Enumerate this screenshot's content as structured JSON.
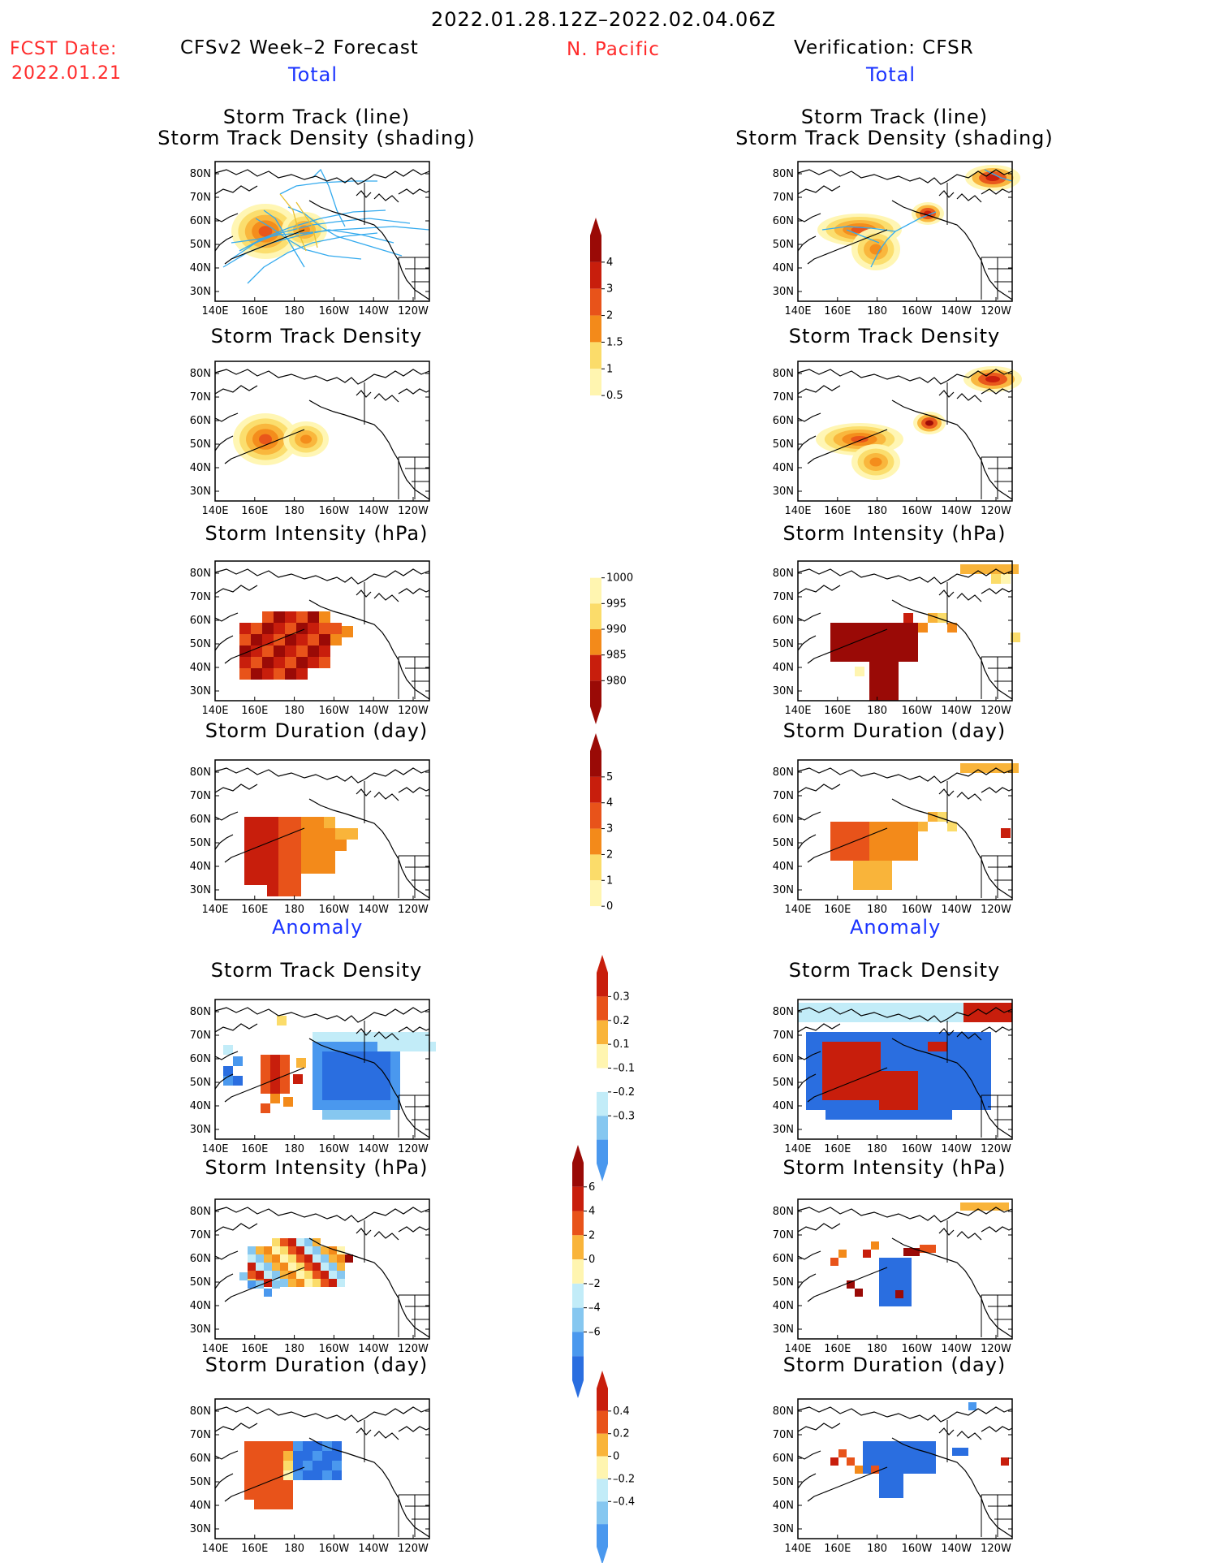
{
  "header": {
    "date_range": "2022.01.28.12Z–2022.02.04.06Z",
    "region": "N. Pacific",
    "fcst_label": "FCST Date:",
    "fcst_date": "2022.01.21",
    "left_title": "CFSv2 Week–2 Forecast",
    "right_title": "Verification: CFSR",
    "total_label": "Total",
    "anomaly_label": "Anomaly"
  },
  "panel_titles": {
    "track_line": "Storm Track (line)",
    "track_density_shading": "Storm Track Density (shading)",
    "track_density": "Storm Track Density",
    "intensity": "Storm Intensity (hPa)",
    "duration": "Storm Duration (day)"
  },
  "axes": {
    "lat_ticks": [
      "80N",
      "70N",
      "60N",
      "50N",
      "40N",
      "30N"
    ],
    "lon_ticks": [
      "140E",
      "160E",
      "180",
      "160W",
      "140W",
      "120W"
    ]
  },
  "colorbars": {
    "density_total": [
      "4",
      "3",
      "2",
      "1.5",
      "1",
      "0.5"
    ],
    "intensity_total": [
      "1000",
      "995",
      "990",
      "985",
      "980"
    ],
    "duration_total": [
      "5",
      "4",
      "3",
      "2",
      "1",
      "0"
    ],
    "density_anom": [
      "0.3",
      "0.2",
      "0.1",
      "–0.1",
      "–0.2",
      "–0.3"
    ],
    "intensity_anom": [
      "6",
      "4",
      "2",
      "0",
      "–2",
      "–4",
      "–6"
    ],
    "duration_anom": [
      "0.4",
      "0.2",
      "0",
      "–0.2",
      "–0.4"
    ]
  },
  "colors": {
    "warm": [
      "#fff5b0",
      "#fbdc6a",
      "#f9b43a",
      "#f38a1a",
      "#e8531a",
      "#c81e0c",
      "#9a0a06"
    ],
    "cool": [
      "#ffffff",
      "#c2ecf8",
      "#86c7f0",
      "#4a98ee",
      "#2a6ee0"
    ],
    "track_line": "#33aaee"
  }
}
